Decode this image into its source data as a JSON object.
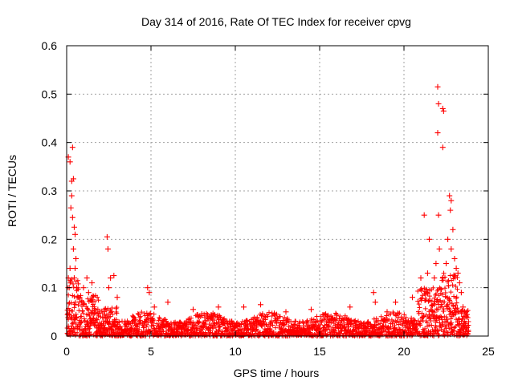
{
  "chart_data": {
    "type": "scatter",
    "title": "Day 314 of 2016, Rate Of TEC Index for receiver cpvg",
    "xlabel": "GPS time / hours",
    "ylabel": "ROTI / TECUs",
    "xlim": [
      0,
      25
    ],
    "ylim": [
      0,
      0.6
    ],
    "x_ticks": [
      0,
      5,
      10,
      15,
      20,
      25
    ],
    "x_tick_labels": [
      "0",
      "5",
      "10",
      "15",
      "20",
      "25"
    ],
    "y_ticks": [
      0,
      0.1,
      0.2,
      0.3,
      0.4,
      0.5,
      0.6
    ],
    "y_tick_labels": [
      "0",
      "0.1",
      "0.2",
      "0.3",
      "0.4",
      "0.5",
      "0.6"
    ],
    "grid": true,
    "marker": "+",
    "color": "#ff0000",
    "series": [
      {
        "name": "ROTI",
        "points": [
          [
            0.1,
            0.37
          ],
          [
            0.2,
            0.36
          ],
          [
            0.35,
            0.39
          ],
          [
            0.3,
            0.32
          ],
          [
            0.4,
            0.325
          ],
          [
            0.25,
            0.265
          ],
          [
            0.35,
            0.245
          ],
          [
            0.3,
            0.29
          ],
          [
            0.45,
            0.225
          ],
          [
            0.5,
            0.21
          ],
          [
            0.4,
            0.18
          ],
          [
            0.55,
            0.16
          ],
          [
            0.5,
            0.14
          ],
          [
            0.45,
            0.12
          ],
          [
            0.6,
            0.1
          ],
          [
            0.2,
            0.14
          ],
          [
            0.1,
            0.12
          ],
          [
            0.15,
            0.1
          ],
          [
            1.0,
            0.1
          ],
          [
            1.2,
            0.12
          ],
          [
            1.5,
            0.11
          ],
          [
            1.3,
            0.09
          ],
          [
            2.4,
            0.205
          ],
          [
            2.45,
            0.18
          ],
          [
            2.6,
            0.12
          ],
          [
            2.8,
            0.125
          ],
          [
            2.5,
            0.1
          ],
          [
            3.0,
            0.08
          ],
          [
            4.8,
            0.1
          ],
          [
            4.9,
            0.09
          ],
          [
            5.2,
            0.06
          ],
          [
            6.0,
            0.07
          ],
          [
            7.5,
            0.055
          ],
          [
            9.0,
            0.06
          ],
          [
            10.5,
            0.06
          ],
          [
            11.5,
            0.065
          ],
          [
            13.0,
            0.05
          ],
          [
            14.5,
            0.055
          ],
          [
            16.8,
            0.06
          ],
          [
            18.2,
            0.09
          ],
          [
            18.3,
            0.07
          ],
          [
            19.0,
            0.05
          ],
          [
            19.5,
            0.07
          ],
          [
            20.5,
            0.08
          ],
          [
            21.0,
            0.12
          ],
          [
            21.2,
            0.25
          ],
          [
            21.4,
            0.13
          ],
          [
            21.5,
            0.2
          ],
          [
            21.8,
            0.12
          ],
          [
            22.0,
            0.515
          ],
          [
            22.05,
            0.48
          ],
          [
            22.0,
            0.42
          ],
          [
            22.05,
            0.25
          ],
          [
            22.3,
            0.47
          ],
          [
            22.35,
            0.465
          ],
          [
            22.3,
            0.39
          ],
          [
            22.6,
            0.2
          ],
          [
            22.7,
            0.29
          ],
          [
            22.8,
            0.28
          ],
          [
            22.75,
            0.26
          ],
          [
            22.9,
            0.22
          ],
          [
            22.8,
            0.18
          ],
          [
            23.0,
            0.16
          ],
          [
            22.5,
            0.15
          ],
          [
            23.1,
            0.14
          ],
          [
            23.2,
            0.13
          ],
          [
            23.3,
            0.11
          ],
          [
            22.3,
            0.12
          ],
          [
            21.9,
            0.15
          ],
          [
            22.1,
            0.18
          ],
          [
            23.4,
            0.09
          ],
          [
            23.5,
            0.06
          ],
          [
            23.6,
            0.05
          ],
          [
            23.7,
            0.04
          ]
        ]
      }
    ]
  }
}
